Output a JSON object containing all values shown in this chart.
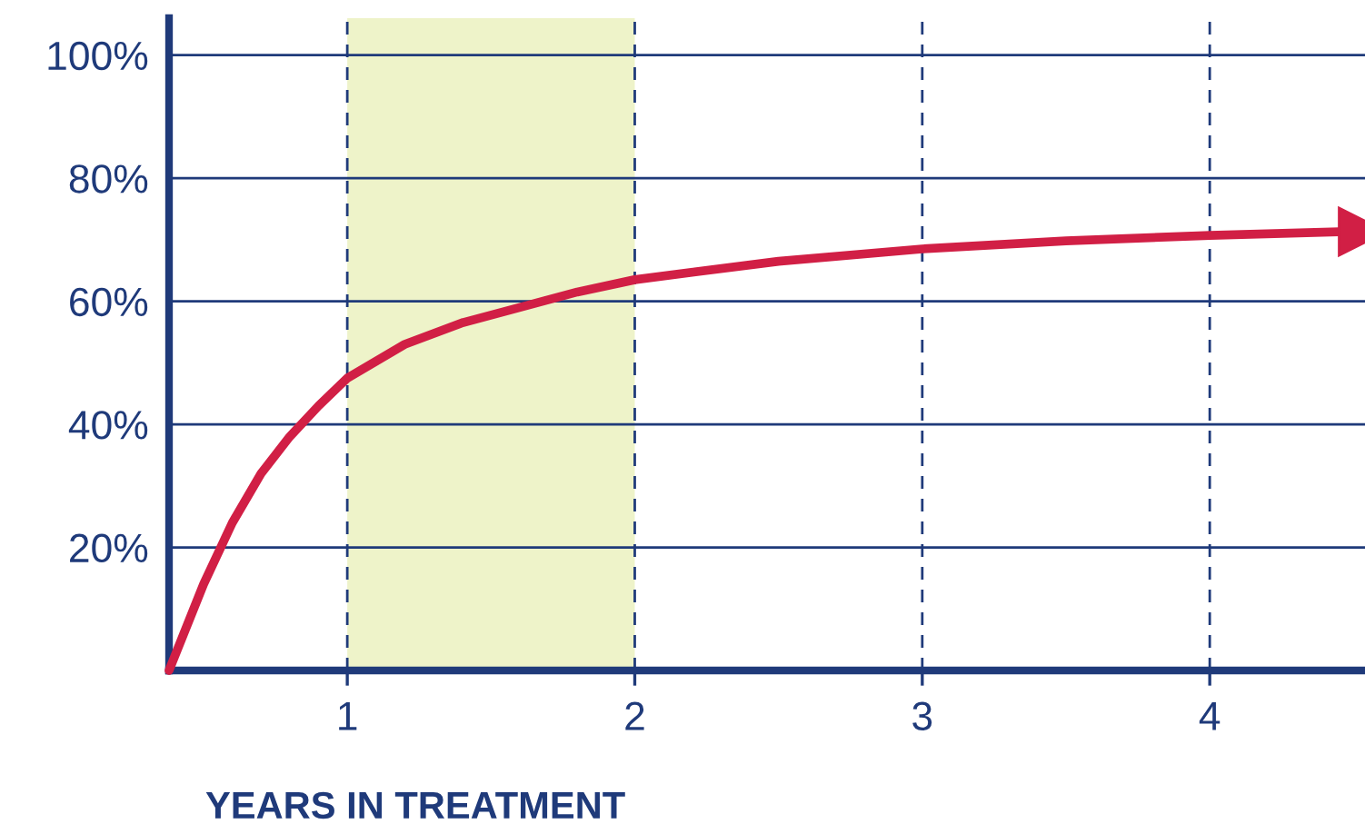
{
  "chart_data": {
    "type": "line",
    "xlabel": "YEARS IN TREATMENT",
    "xlim": [
      0.38,
      4.54
    ],
    "ylim": [
      0,
      106
    ],
    "xticks": [
      1,
      2,
      3,
      4
    ],
    "yticks": [
      {
        "value": 20,
        "label": "20%"
      },
      {
        "value": 40,
        "label": "40%"
      },
      {
        "value": 60,
        "label": "60%"
      },
      {
        "value": 80,
        "label": "80%"
      },
      {
        "value": 100,
        "label": "100%"
      }
    ],
    "grid": true,
    "marker": "none",
    "line_style": "solid",
    "bands": [
      {
        "axis": "x",
        "from": 1,
        "to": 2,
        "color": "#eef3c9"
      }
    ],
    "series": [
      {
        "color": "#d11f45",
        "x": [
          0.38,
          0.5,
          0.6,
          0.7,
          0.8,
          0.9,
          1.0,
          1.2,
          1.4,
          1.6,
          1.8,
          2.0,
          2.5,
          3.0,
          3.5,
          4.0,
          4.45
        ],
        "values": [
          0,
          14,
          24,
          32,
          38,
          43,
          47.5,
          53,
          56.5,
          59,
          61.5,
          63.5,
          66.5,
          68.5,
          69.8,
          70.7,
          71.3
        ]
      }
    ]
  }
}
